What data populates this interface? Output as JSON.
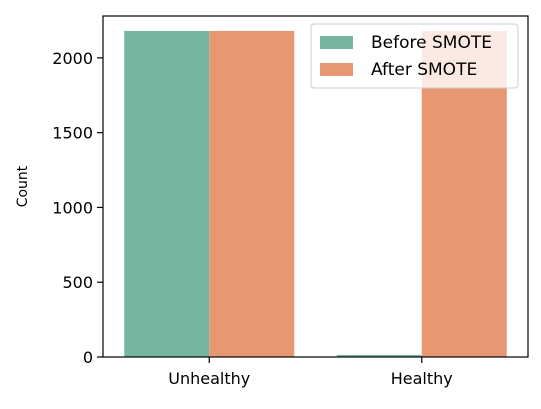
{
  "chart_data": {
    "type": "bar",
    "title": "",
    "xlabel": "",
    "ylabel": "Count",
    "categories": [
      "Unhealthy",
      "Healthy"
    ],
    "series": [
      {
        "name": "Before SMOTE",
        "values": [
          2180,
          14
        ],
        "color": "#76b6a1"
      },
      {
        "name": "After SMOTE",
        "values": [
          2180,
          2180
        ],
        "color": "#e89773"
      }
    ],
    "ylim": [
      0,
      2280
    ],
    "yticks": [
      0,
      500,
      1000,
      1500,
      2000
    ],
    "grid": false,
    "legend_position": "top-right"
  }
}
